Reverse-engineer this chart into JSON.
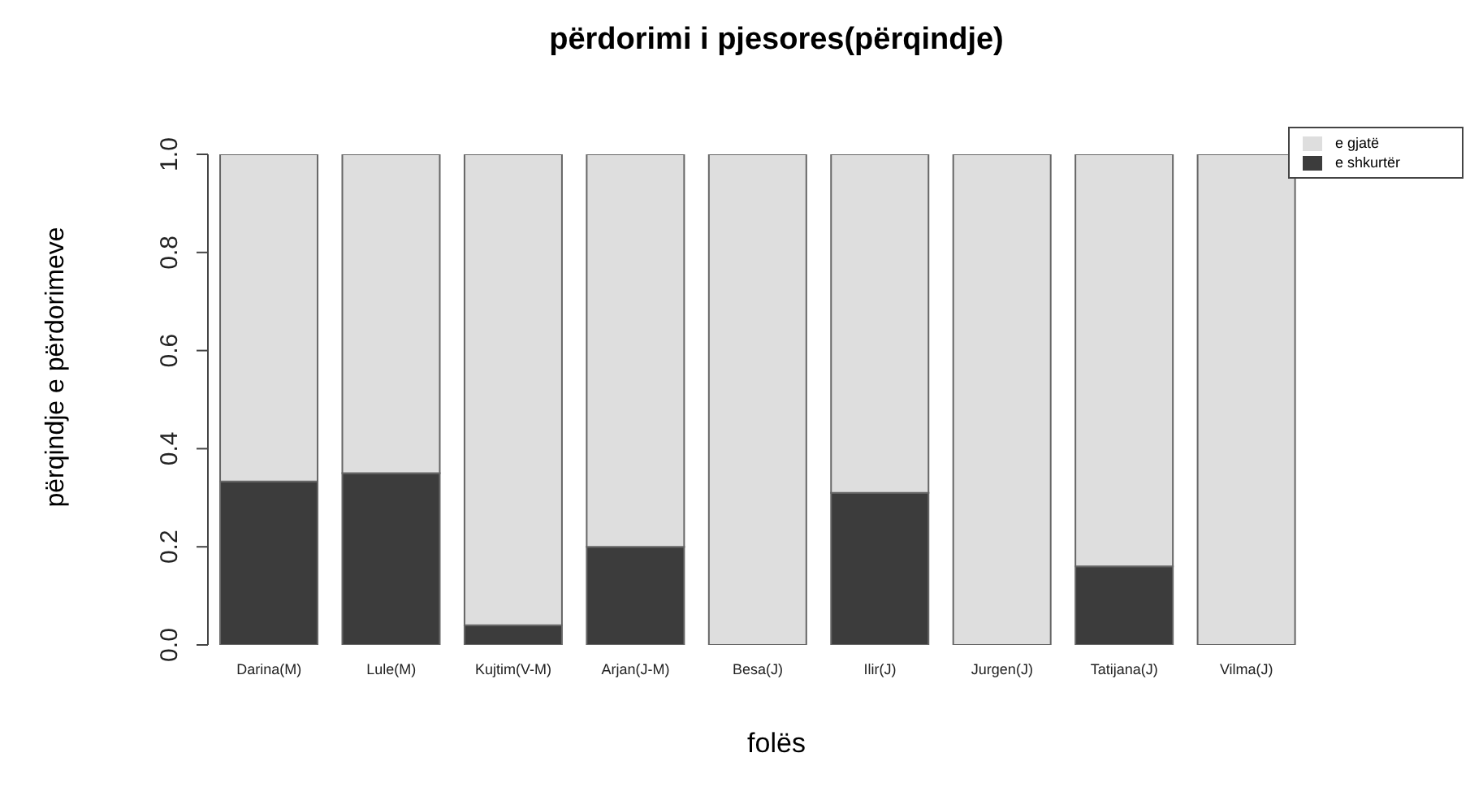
{
  "chart_data": {
    "type": "bar",
    "title": "përdorimi i pjesores(përqindje)",
    "xlabel": "folës",
    "ylabel": "përqindje e përdorimeve",
    "categories": [
      "Darina(M)",
      "Lule(M)",
      "Kujtim(V-M)",
      "Arjan(J-M)",
      "Besa(J)",
      "Ilir(J)",
      "Jurgen(J)",
      "Tatijana(J)",
      "Vilma(J)"
    ],
    "stacked": true,
    "series": [
      {
        "name": "e shkurtër",
        "color": "#3c3c3c",
        "values": [
          0.333,
          0.35,
          0.04,
          0.2,
          0,
          0.31,
          0,
          0.16,
          0
        ]
      },
      {
        "name": "e gjatë",
        "color": "#dedede",
        "values": [
          0.667,
          0.65,
          0.96,
          0.8,
          1,
          0.69,
          1,
          0.84,
          1
        ]
      }
    ],
    "ylim": [
      0,
      1
    ],
    "yticks": [
      {
        "value": 0,
        "label": "0.0"
      },
      {
        "value": 0.2,
        "label": "0.2"
      },
      {
        "value": 0.4,
        "label": "0.4"
      },
      {
        "value": 0.6,
        "label": "0.6"
      },
      {
        "value": 0.8,
        "label": "0.8"
      },
      {
        "value": 1,
        "label": "1.0"
      }
    ],
    "grid": false,
    "legend": "top right"
  }
}
